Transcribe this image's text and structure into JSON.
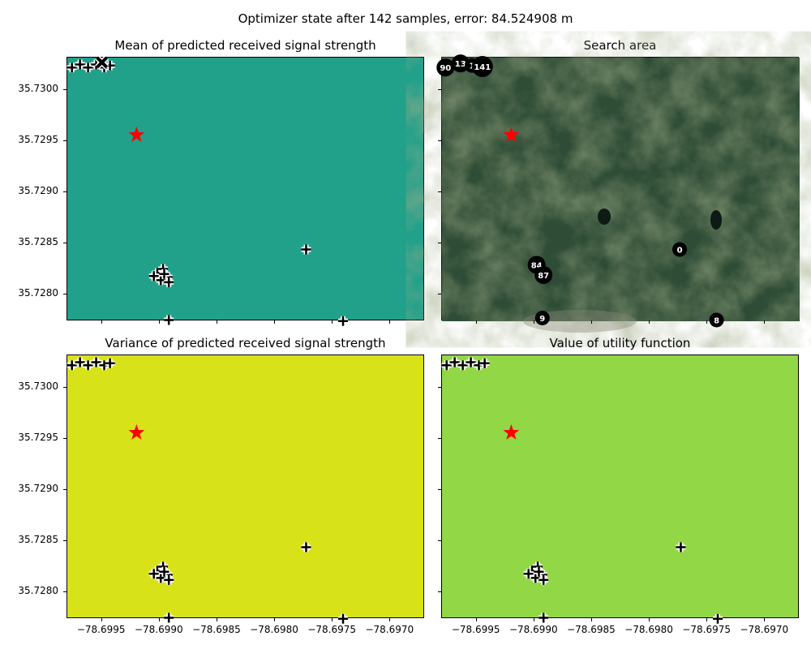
{
  "chart_data": {
    "type": "scatter",
    "title": "Optimizer state after 142 samples, error: 84.524908 m",
    "xlim": [
      -78.6998,
      -78.6967
    ],
    "ylim": [
      35.727738,
      35.730317
    ],
    "xticks": [
      "−78.6995",
      "−78.6990",
      "−78.6985",
      "−78.6980",
      "−78.6975",
      "−78.6970"
    ],
    "xtick_values": [
      -78.6995,
      -78.699,
      -78.6985,
      -78.698,
      -78.6975,
      -78.697
    ],
    "yticks": [
      "35.7300",
      "35.7295",
      "35.7290",
      "35.7285",
      "35.7280"
    ],
    "ytick_values": [
      35.73,
      35.7295,
      35.729,
      35.7285,
      35.728
    ],
    "panels": [
      {
        "title": "Mean of predicted received signal strength",
        "background": "#21a08a",
        "type": "heatmap"
      },
      {
        "title": "Search area",
        "background": "#3a5a40",
        "type": "map"
      },
      {
        "title": "Variance of predicted received signal strength",
        "background": "#d8e219",
        "type": "heatmap"
      },
      {
        "title": "Value of utility function",
        "background": "#92d745",
        "type": "heatmap"
      }
    ],
    "true_position": {
      "x": -78.6992,
      "y": 35.72956,
      "color": "#ff0000"
    },
    "samples": [
      [
        -78.69976,
        35.73022
      ],
      [
        -78.69969,
        35.73025
      ],
      [
        -78.69962,
        35.73022
      ],
      [
        -78.69955,
        35.73025
      ],
      [
        -78.69948,
        35.73022
      ],
      [
        -78.69943,
        35.73024
      ],
      [
        -78.69773,
        35.72844
      ],
      [
        -78.69741,
        35.72774
      ],
      [
        -78.69892,
        35.72775
      ],
      [
        -78.69902,
        35.72821
      ],
      [
        -78.69897,
        35.72825
      ],
      [
        -78.69893,
        35.72817
      ],
      [
        -78.69899,
        35.72814
      ],
      [
        -78.69892,
        35.72812
      ],
      [
        -78.69905,
        35.72818
      ],
      [
        -78.69896,
        35.7282
      ]
    ],
    "current_estimate": {
      "x": -78.6995,
      "y": 35.73027
    },
    "labels": [
      {
        "text": "0",
        "x": -78.69774,
        "y": 35.72844
      },
      {
        "text": "8",
        "x": -78.69742,
        "y": 35.72775
      },
      {
        "text": "9",
        "x": -78.69893,
        "y": 35.72777
      },
      {
        "text": "84",
        "x": -78.69898,
        "y": 35.72829
      },
      {
        "text": "87",
        "x": -78.69892,
        "y": 35.72819
      },
      {
        "text": "90",
        "x": -78.69977,
        "y": 35.73022
      },
      {
        "text": "13",
        "x": -78.69964,
        "y": 35.73026
      },
      {
        "text": "1",
        "x": -78.69954,
        "y": 35.73024
      },
      {
        "text": "141",
        "x": -78.69945,
        "y": 35.73023
      }
    ]
  }
}
